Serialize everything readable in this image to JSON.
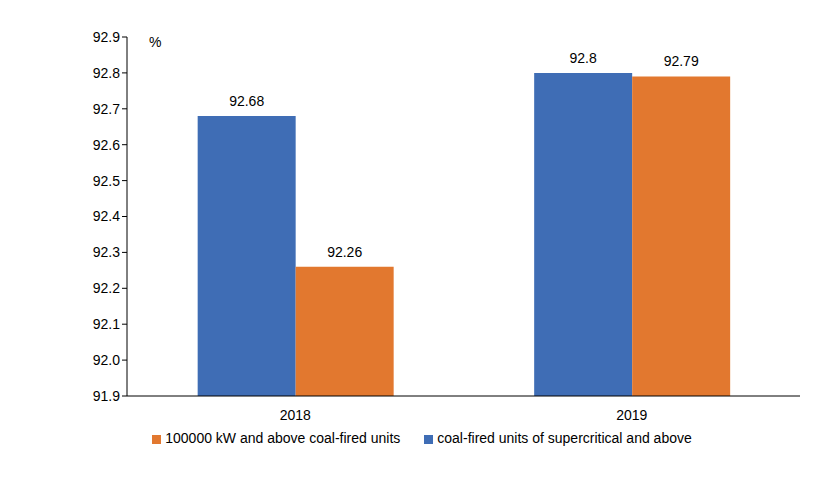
{
  "chart_data": {
    "type": "bar",
    "ylabel": "%",
    "categories": [
      "2018",
      "2019"
    ],
    "series": [
      {
        "name": "coal-fired units of supercritical and above",
        "color": "#3f6db5",
        "values": [
          92.68,
          92.8
        ]
      },
      {
        "name": "100000 kW and above coal-fired units",
        "color": "#e2782f",
        "values": [
          92.26,
          92.79
        ]
      }
    ],
    "ylim": [
      91.9,
      92.9
    ],
    "yticks": [
      91.9,
      {
        "value": 92,
        "label": "92.0"
      },
      92.1,
      92.2,
      92.3,
      92.4,
      92.5,
      92.6,
      92.7,
      92.8,
      92.9
    ],
    "data_labels": true,
    "grid": false,
    "legend": "bottom"
  }
}
